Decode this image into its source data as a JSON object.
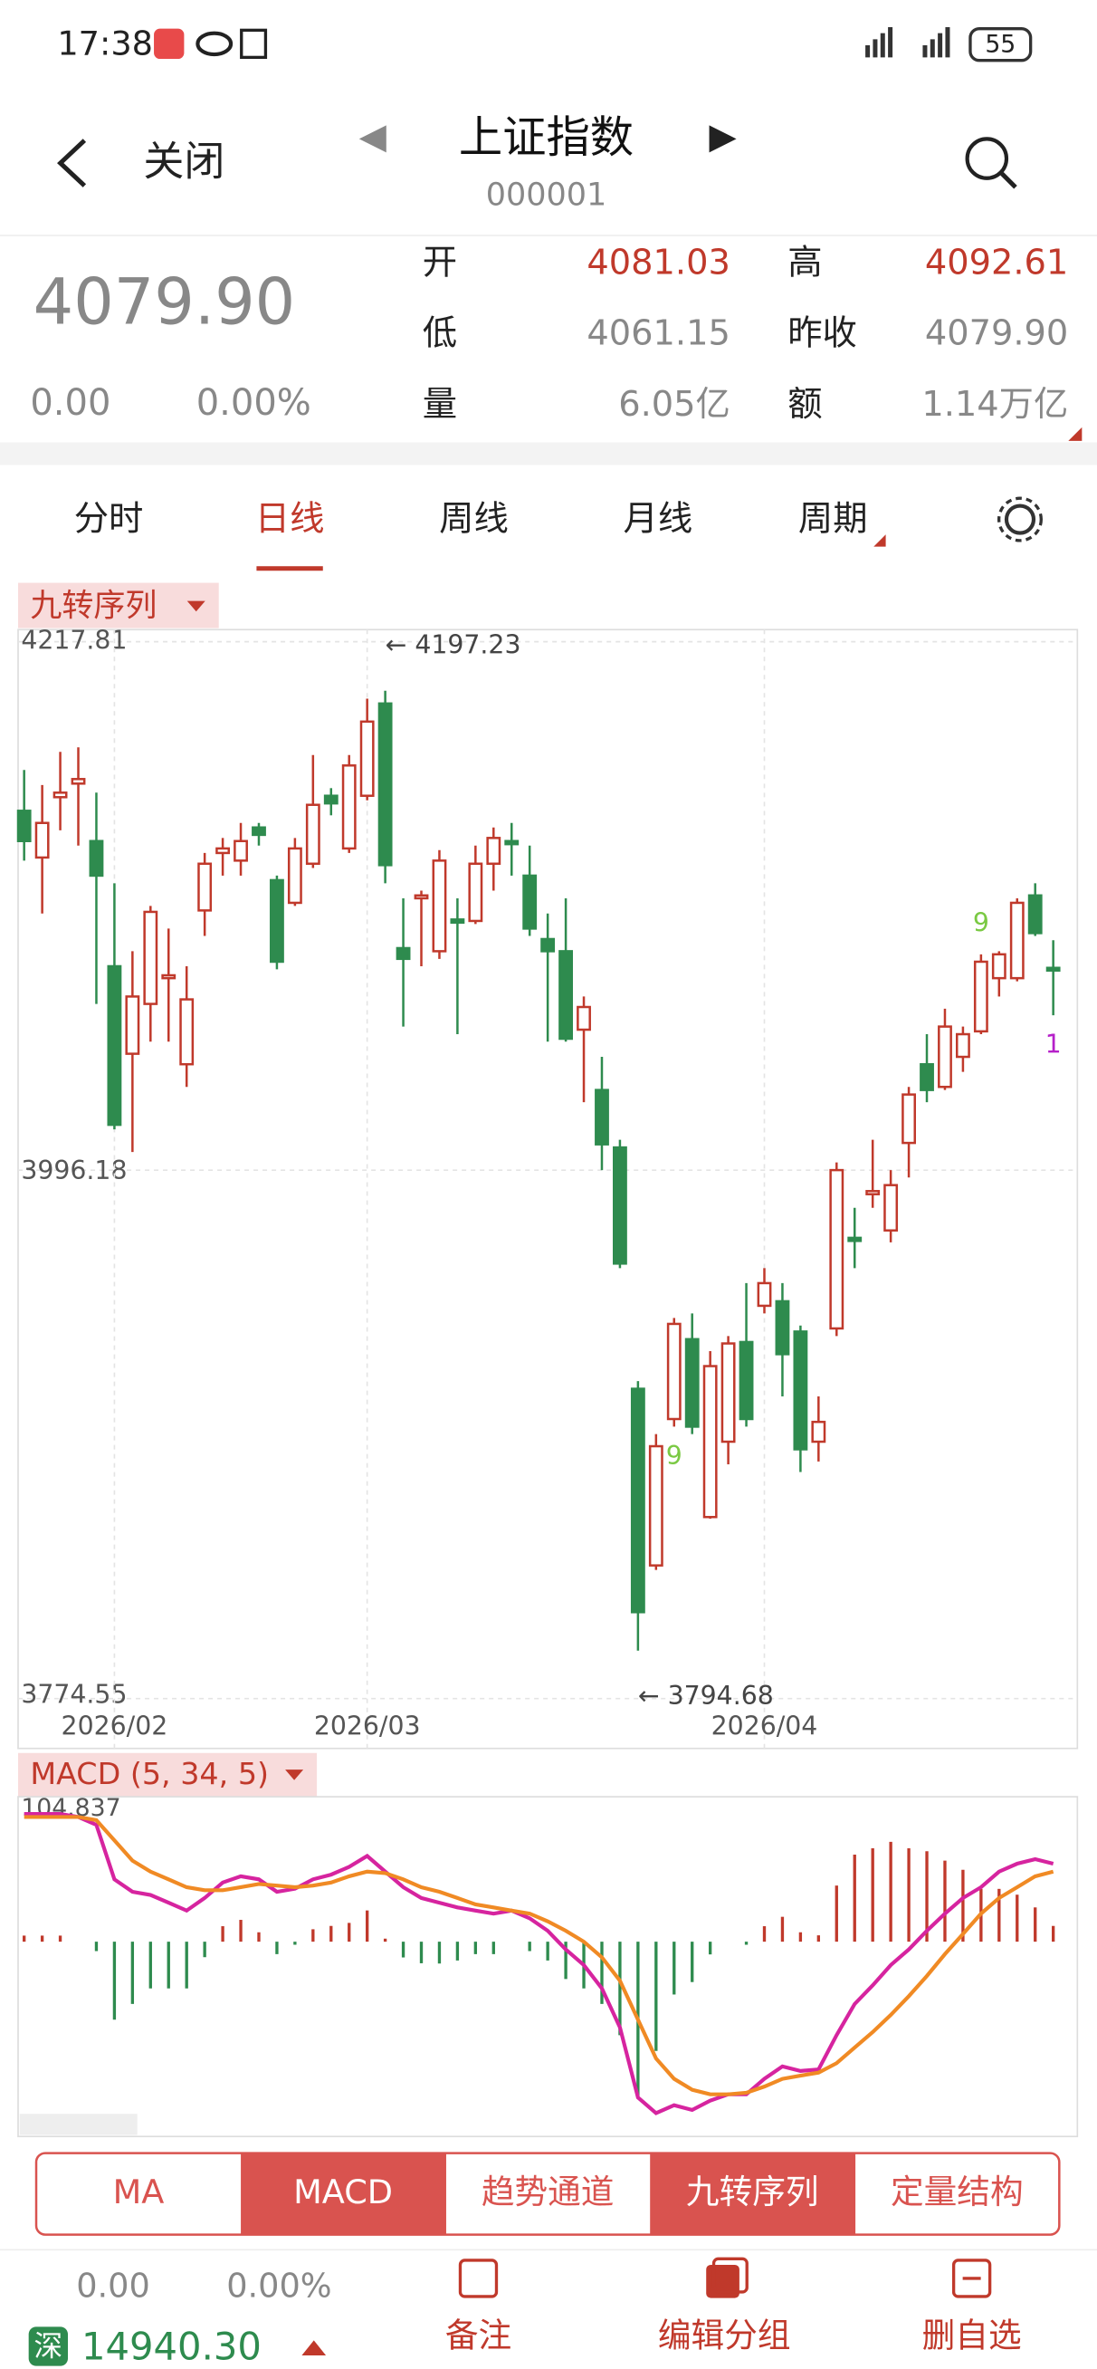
{
  "status_bar": {
    "time": "17:38",
    "battery": "55"
  },
  "header": {
    "back": "关闭",
    "title": "上证指数",
    "code": "000001"
  },
  "quote": {
    "price": "4079.90",
    "change": "0.00",
    "change_pct": "0.00%",
    "fields": [
      {
        "label": "开",
        "value": "4081.03",
        "color": "#c0392b"
      },
      {
        "label": "高",
        "value": "4092.61",
        "color": "#c0392b"
      },
      {
        "label": "低",
        "value": "4061.15",
        "color": "#888888"
      },
      {
        "label": "昨收",
        "value": "4079.90",
        "color": "#888888"
      },
      {
        "label": "量",
        "value": "6.05亿",
        "color": "#888888"
      },
      {
        "label": "额",
        "value": "1.14万亿",
        "color": "#888888"
      }
    ]
  },
  "tabs": {
    "items": [
      "分时",
      "日线",
      "周线",
      "月线",
      "周期"
    ],
    "active": 1
  },
  "chart_data": [
    {
      "type": "candlestick",
      "title": "九转序列",
      "up_color": "#c0392b",
      "down_color": "#2e8b4e",
      "categories": [
        null,
        null,
        null,
        null,
        null,
        "2026/02",
        null,
        null,
        null,
        null,
        null,
        null,
        null,
        null,
        null,
        null,
        null,
        null,
        null,
        "2026/03",
        null,
        null,
        null,
        null,
        null,
        null,
        null,
        null,
        null,
        null,
        null,
        null,
        null,
        null,
        null,
        null,
        null,
        null,
        null,
        null,
        null,
        "2026/04",
        null,
        null,
        null,
        null,
        null,
        null,
        null,
        null,
        null,
        null,
        null,
        null,
        null,
        null,
        null,
        null
      ],
      "open": [
        4146.9,
        4127.3,
        4152.6,
        4158.3,
        4134.2,
        4081.7,
        4045.0,
        4065.9,
        4076.7,
        4040.6,
        4105.1,
        4129.2,
        4126.0,
        4139.9,
        4117.8,
        4108.3,
        4124.7,
        4153.2,
        4131.1,
        4153.2,
        4191.9,
        4089.3,
        4110.2,
        4088.0,
        4101.3,
        4100.7,
        4124.7,
        4134.2,
        4119.7,
        4093.1,
        4088.0,
        4055.1,
        4029.8,
        4005.7,
        3904.5,
        3830.4,
        3891.8,
        3925.3,
        3850.7,
        3882.3,
        3924.1,
        3939.3,
        3941.2,
        3928.5,
        3882.3,
        3929.8,
        3967.8,
        3986.1,
        3970.9,
        4007.6,
        4040.6,
        4031.1,
        4043.7,
        4054.4,
        4076.7,
        4076.7,
        4111.4,
        4081.03
      ],
      "high": [
        4164.0,
        4157.7,
        4171.6,
        4173.5,
        4154.5,
        4116.5,
        4088.0,
        4107.0,
        4097.5,
        4081.7,
        4129.2,
        4135.5,
        4141.8,
        4141.8,
        4119.7,
        4135.5,
        4170.3,
        4156.4,
        4170.3,
        4193.9,
        4197.23,
        4110.2,
        4113.4,
        4130.4,
        4110.2,
        4132.3,
        4139.9,
        4141.8,
        4132.3,
        4103.8,
        4110.2,
        4069.0,
        4043.7,
        4008.9,
        3907.7,
        3885.5,
        3934.2,
        3936.1,
        3920.3,
        3926.6,
        3948.8,
        3955.1,
        3948.8,
        3931.0,
        3901.3,
        3999.4,
        3980.4,
        4008.9,
        3996.2,
        4031.1,
        4053.2,
        4063.9,
        4056.4,
        4086.7,
        4088.0,
        4110.2,
        4116.5,
        4092.61
      ],
      "low": [
        4126.0,
        4103.8,
        4138.7,
        4132.3,
        4065.9,
        4013.3,
        4003.8,
        4050.1,
        4050.1,
        4031.1,
        4094.4,
        4119.7,
        4119.7,
        4132.3,
        4080.4,
        4107.0,
        4122.9,
        4145.0,
        4129.2,
        4151.3,
        4116.5,
        4056.4,
        4081.7,
        4084.8,
        4053.2,
        4099.4,
        4113.4,
        4119.7,
        4094.4,
        4050.1,
        4050.1,
        4024.7,
        3996.2,
        3955.1,
        3794.68,
        3828.5,
        3888.6,
        3885.5,
        3850.0,
        3872.8,
        3888.6,
        3936.1,
        3901.3,
        3869.6,
        3874.0,
        3926.6,
        3955.1,
        3980.4,
        3965.9,
        3993.1,
        4024.7,
        4029.8,
        4037.4,
        4053.2,
        4069.0,
        4075.4,
        4094.4,
        4061.15
      ],
      "close": [
        4134.2,
        4141.8,
        4154.5,
        4160.2,
        4119.7,
        4015.2,
        4069.0,
        4104.5,
        4077.9,
        4067.8,
        4124.7,
        4131.1,
        4134.2,
        4136.8,
        4083.6,
        4131.1,
        4149.4,
        4150.0,
        4165.9,
        4184.3,
        4124.1,
        4084.8,
        4111.4,
        4126.0,
        4100.0,
        4124.7,
        4135.5,
        4132.9,
        4097.5,
        4088.0,
        4051.3,
        4064.6,
        4007.0,
        3957.0,
        3810.8,
        3880.4,
        3931.7,
        3888.6,
        3914.0,
        3923.5,
        3891.8,
        3948.8,
        3919.0,
        3879.1,
        3890.6,
        3996.2,
        3966.5,
        3987.4,
        3989.9,
        4027.9,
        4029.8,
        4056.4,
        4053.2,
        4083.6,
        4086.7,
        4108.3,
        4095.6,
        4079.9
      ],
      "ylim": [
        3774.55,
        4217.81
      ],
      "yticks": [
        4217.81,
        3996.18,
        3774.55
      ],
      "grid": true,
      "annotations": [
        "← 4197.23",
        "← 3794.68"
      ],
      "sequence_labels": [
        {
          "label": "9",
          "candle": 36,
          "pos": "below",
          "color": "#7ac943"
        },
        {
          "label": "9",
          "candle": 53,
          "pos": "above",
          "color": "#7ac943"
        },
        {
          "label": "1",
          "candle": 57,
          "pos": "below",
          "color": "#b620c9"
        }
      ]
    },
    {
      "type": "macd",
      "title": "MACD (5, 34, 5)",
      "ylim": [
        -140.9,
        104.837
      ],
      "yticks": [
        104.837
      ],
      "series": [
        {
          "color": "#d6249f",
          "values": [
            92.4,
            92.4,
            92.4,
            90.2,
            84.5,
            45.1,
            36.1,
            33.8,
            28.2,
            22.5,
            31.6,
            42.8,
            47.3,
            45.1,
            36.1,
            38.3,
            45.1,
            48.5,
            54.1,
            62.0,
            50.7,
            39.4,
            31.6,
            28.2,
            24.8,
            22.5,
            20.3,
            22.5,
            16.9,
            7.9,
            -5.6,
            -16.9,
            -33.8,
            -62.0,
            -112.7,
            -124.0,
            -118.3,
            -121.7,
            -115.0,
            -110.4,
            -110.4,
            -99.2,
            -90.2,
            -93.5,
            -92.4,
            -67.6,
            -45.1,
            -31.6,
            -16.9,
            -5.6,
            7.9,
            20.3,
            31.6,
            39.4,
            50.7,
            56.4,
            59.7,
            56.4
          ]
        },
        {
          "color": "#f08a24",
          "values": [
            90.2,
            90.2,
            90.2,
            90.2,
            87.9,
            73.3,
            58.6,
            50.7,
            45.1,
            39.4,
            37.2,
            37.2,
            39.4,
            41.7,
            40.6,
            39.4,
            40.6,
            42.8,
            47.3,
            50.7,
            49.6,
            45.1,
            39.4,
            36.1,
            31.6,
            27.0,
            24.8,
            22.5,
            20.3,
            14.7,
            7.9,
            0,
            -11.3,
            -28.2,
            -56.4,
            -84.5,
            -99.2,
            -107.1,
            -110.4,
            -110.4,
            -109.3,
            -104.8,
            -99.2,
            -96.9,
            -94.7,
            -87.9,
            -76.6,
            -65.4,
            -53.0,
            -39.4,
            -24.8,
            -9.0,
            5.6,
            20.3,
            31.6,
            39.4,
            47.3,
            50.7
          ]
        },
        {
          "type": "bar",
          "up_color": "#c0392b",
          "down_color": "#2e8b4e",
          "values": [
            4.4,
            4.4,
            4.4,
            0,
            -6.8,
            -56.4,
            -45.0,
            -33.8,
            -33.8,
            -33.8,
            -11.2,
            11.2,
            15.8,
            6.8,
            -9.0,
            -2.2,
            9.0,
            11.4,
            13.6,
            22.6,
            2.2,
            -11.4,
            -15.6,
            -15.8,
            -13.6,
            -9.0,
            -9.0,
            0,
            -6.8,
            -13.6,
            -27.0,
            -33.8,
            -45.0,
            -67.6,
            -112.6,
            -79.0,
            -38.2,
            -29.2,
            -9.2,
            0,
            -2.2,
            11.2,
            18.0,
            6.8,
            4.6,
            40.6,
            63.0,
            67.6,
            72.2,
            67.6,
            65.4,
            58.6,
            52.0,
            38.2,
            38.2,
            34.0,
            24.8,
            11.4
          ]
        }
      ]
    }
  ],
  "indicator_tabs": {
    "items": [
      "MA",
      "MACD",
      "趋势通道",
      "九转序列",
      "定量结构"
    ],
    "selected": [
      1,
      3
    ]
  },
  "footer": {
    "change": "0.00",
    "change_pct": "0.00%",
    "index_badge": "深",
    "index_value": "14940.30",
    "actions": [
      "备注",
      "编辑分组",
      "删自选"
    ]
  }
}
